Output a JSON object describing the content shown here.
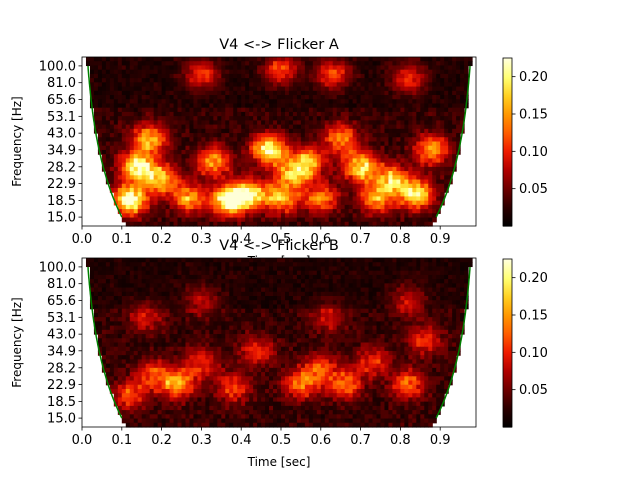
{
  "colorbar_gradient": [
    "#000000",
    "#2d0000",
    "#6e0000",
    "#b00000",
    "#ee1a00",
    "#ff5c00",
    "#ff9600",
    "#ffcf20",
    "#ffff70",
    "#ffffd8"
  ],
  "boundary_color": "#008000",
  "chart_data": [
    {
      "type": "heatmap",
      "title": "V4 <-> Flicker A",
      "xlabel": "Time [sec]",
      "ylabel": "Frequency [Hz]",
      "x_ticks": [
        "0.0",
        "0.1",
        "0.2",
        "0.3",
        "0.4",
        "0.5",
        "0.6",
        "0.7",
        "0.8",
        "0.9"
      ],
      "y_ticks": [
        "15.0",
        "18.5",
        "22.9",
        "28.2",
        "34.9",
        "43.0",
        "53.1",
        "65.6",
        "81.0",
        "100.0"
      ],
      "xlim": [
        0.0,
        0.99
      ],
      "colorbar_ticks": [
        "0.05",
        "0.10",
        "0.15",
        "0.20"
      ],
      "colorbar_range": [
        0.0,
        0.225
      ],
      "cone_of_influence": true,
      "grid": false,
      "hotspots": [
        {
          "t": 0.12,
          "f": 18.5,
          "amp": 0.2
        },
        {
          "t": 0.14,
          "f": 28.2,
          "amp": 0.19
        },
        {
          "t": 0.17,
          "f": 40.0,
          "amp": 0.14
        },
        {
          "t": 0.2,
          "f": 24.0,
          "amp": 0.15
        },
        {
          "t": 0.27,
          "f": 19.0,
          "amp": 0.13
        },
        {
          "t": 0.33,
          "f": 30.0,
          "amp": 0.13
        },
        {
          "t": 0.37,
          "f": 18.5,
          "amp": 0.21
        },
        {
          "t": 0.42,
          "f": 20.0,
          "amp": 0.17
        },
        {
          "t": 0.47,
          "f": 34.9,
          "amp": 0.19
        },
        {
          "t": 0.5,
          "f": 19.0,
          "amp": 0.14
        },
        {
          "t": 0.53,
          "f": 26.0,
          "amp": 0.13
        },
        {
          "t": 0.57,
          "f": 30.0,
          "amp": 0.13
        },
        {
          "t": 0.6,
          "f": 19.0,
          "amp": 0.12
        },
        {
          "t": 0.65,
          "f": 40.0,
          "amp": 0.12
        },
        {
          "t": 0.7,
          "f": 28.2,
          "amp": 0.17
        },
        {
          "t": 0.74,
          "f": 19.0,
          "amp": 0.13
        },
        {
          "t": 0.78,
          "f": 24.0,
          "amp": 0.14
        },
        {
          "t": 0.84,
          "f": 20.0,
          "amp": 0.17
        },
        {
          "t": 0.88,
          "f": 34.9,
          "amp": 0.13
        },
        {
          "t": 0.3,
          "f": 90.0,
          "amp": 0.09
        },
        {
          "t": 0.5,
          "f": 95.0,
          "amp": 0.1
        },
        {
          "t": 0.63,
          "f": 90.0,
          "amp": 0.1
        },
        {
          "t": 0.82,
          "f": 85.0,
          "amp": 0.09
        }
      ]
    },
    {
      "type": "heatmap",
      "title": "V4 <-> Flicker B",
      "xlabel": "Time [sec]",
      "ylabel": "Frequency [Hz]",
      "x_ticks": [
        "0.0",
        "0.1",
        "0.2",
        "0.3",
        "0.4",
        "0.5",
        "0.6",
        "0.7",
        "0.8",
        "0.9"
      ],
      "y_ticks": [
        "15.0",
        "18.5",
        "22.9",
        "28.2",
        "34.9",
        "43.0",
        "53.1",
        "65.6",
        "81.0",
        "100.0"
      ],
      "xlim": [
        0.0,
        0.99
      ],
      "colorbar_ticks": [
        "0.05",
        "0.10",
        "0.15",
        "0.20"
      ],
      "colorbar_range": [
        0.0,
        0.225
      ],
      "cone_of_influence": true,
      "grid": false,
      "hotspots": [
        {
          "t": 0.12,
          "f": 20.0,
          "amp": 0.09
        },
        {
          "t": 0.18,
          "f": 26.0,
          "amp": 0.09
        },
        {
          "t": 0.24,
          "f": 22.9,
          "amp": 0.13
        },
        {
          "t": 0.3,
          "f": 30.0,
          "amp": 0.08
        },
        {
          "t": 0.38,
          "f": 22.0,
          "amp": 0.09
        },
        {
          "t": 0.44,
          "f": 34.9,
          "amp": 0.08
        },
        {
          "t": 0.55,
          "f": 22.9,
          "amp": 0.11
        },
        {
          "t": 0.6,
          "f": 28.2,
          "amp": 0.09
        },
        {
          "t": 0.66,
          "f": 22.9,
          "amp": 0.1
        },
        {
          "t": 0.73,
          "f": 30.0,
          "amp": 0.08
        },
        {
          "t": 0.82,
          "f": 22.9,
          "amp": 0.1
        },
        {
          "t": 0.86,
          "f": 40.0,
          "amp": 0.08
        },
        {
          "t": 0.3,
          "f": 65.6,
          "amp": 0.06
        },
        {
          "t": 0.82,
          "f": 65.6,
          "amp": 0.07
        },
        {
          "t": 0.16,
          "f": 53.1,
          "amp": 0.06
        },
        {
          "t": 0.62,
          "f": 53.1,
          "amp": 0.06
        }
      ]
    }
  ]
}
